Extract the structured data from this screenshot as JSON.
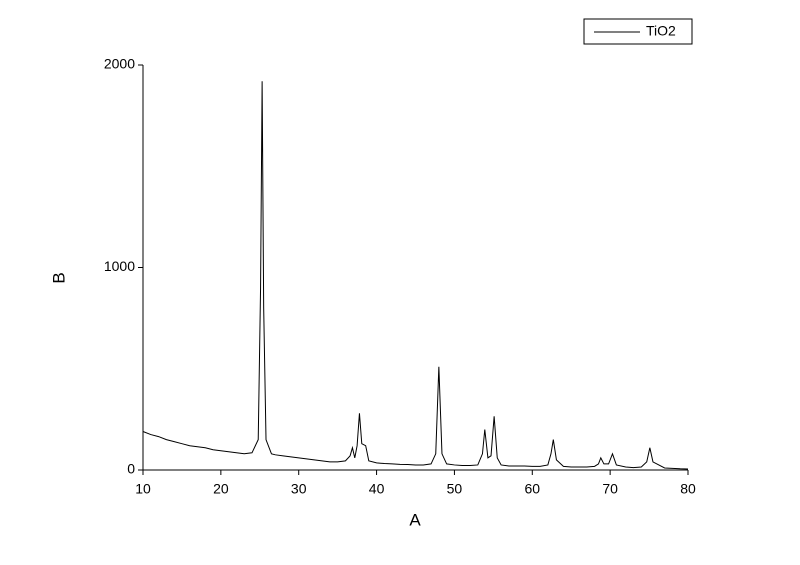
{
  "chart_data": {
    "type": "line",
    "x_label": "A",
    "y_label": "B",
    "x": [
      10,
      11,
      12,
      13,
      14,
      15,
      16,
      17,
      18,
      19,
      20,
      21,
      22,
      23,
      24,
      24.8,
      25.1,
      25.3,
      25.5,
      25.8,
      26.5,
      27,
      28,
      29,
      30,
      31,
      32,
      33,
      34,
      35,
      36,
      36.6,
      36.9,
      37.2,
      37.5,
      37.8,
      38.1,
      38.6,
      39,
      40,
      41,
      42,
      43,
      44,
      45,
      46,
      47,
      47.6,
      48,
      48.4,
      49,
      50,
      51,
      52,
      53,
      53.6,
      53.9,
      54.3,
      54.7,
      55.1,
      55.5,
      56,
      57,
      58,
      59,
      60,
      61,
      62,
      62.4,
      62.7,
      63.1,
      64,
      65,
      66,
      67,
      68,
      68.5,
      68.8,
      69.2,
      69.8,
      70.3,
      70.8,
      72,
      73,
      74,
      74.7,
      75.1,
      75.5,
      76,
      77,
      78,
      79,
      80
    ],
    "series": [
      {
        "name": "TiO2",
        "color": "#000000",
        "values": [
          190,
          175,
          165,
          150,
          140,
          130,
          120,
          115,
          110,
          100,
          95,
          90,
          85,
          80,
          85,
          150,
          900,
          1920,
          800,
          150,
          80,
          75,
          70,
          65,
          60,
          55,
          50,
          45,
          40,
          40,
          45,
          70,
          110,
          60,
          120,
          280,
          130,
          120,
          45,
          35,
          32,
          30,
          28,
          27,
          25,
          25,
          30,
          80,
          510,
          80,
          30,
          25,
          22,
          22,
          25,
          80,
          200,
          60,
          70,
          265,
          60,
          25,
          20,
          20,
          20,
          18,
          18,
          25,
          80,
          150,
          50,
          18,
          15,
          15,
          15,
          18,
          30,
          60,
          30,
          30,
          80,
          25,
          15,
          12,
          15,
          40,
          110,
          40,
          30,
          10,
          8,
          6,
          5
        ]
      }
    ],
    "xlim": [
      10,
      80
    ],
    "xticks": [
      10,
      20,
      30,
      40,
      50,
      60,
      70,
      80
    ],
    "ylim": [
      0,
      2000
    ],
    "yticks": [
      0,
      1000,
      2000
    ],
    "legend": "top-right"
  }
}
